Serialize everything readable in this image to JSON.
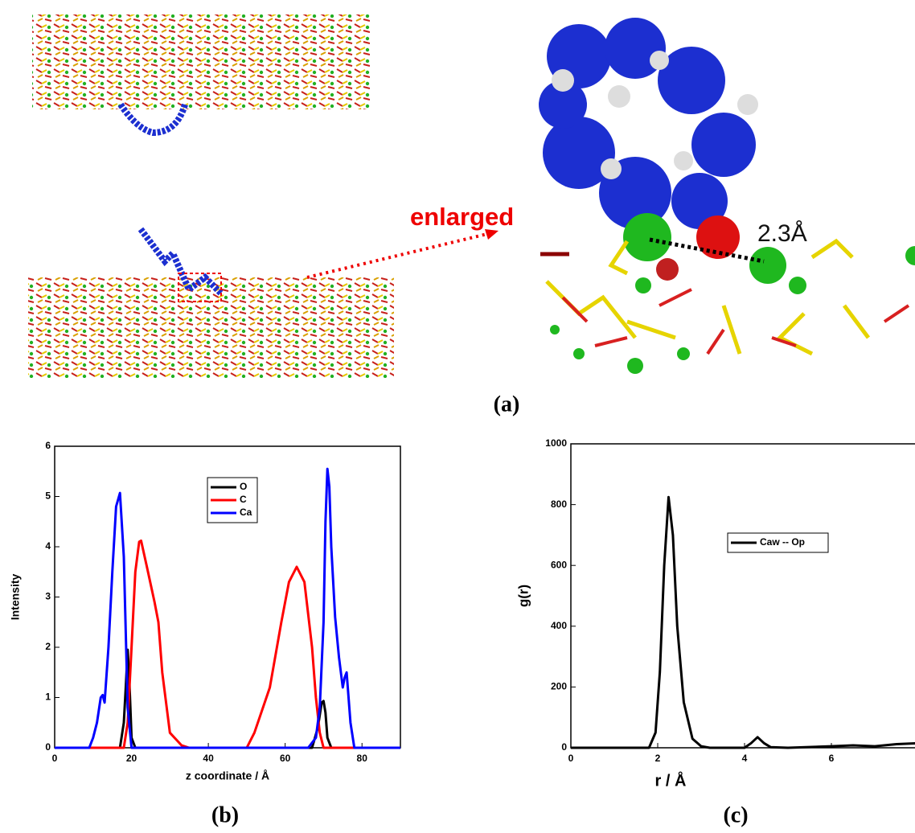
{
  "panel_a": {
    "annotation": "enlarged",
    "distance_label": "2.3Å",
    "label": "(a)"
  },
  "chart_data": [
    {
      "type": "line",
      "panel_label": "(b)",
      "x_label": "z coordinate / Å",
      "y_label": "Intensity",
      "xlim": [
        0,
        90
      ],
      "ylim": [
        0,
        6
      ],
      "xticks": [
        0,
        20,
        40,
        60,
        80
      ],
      "yticks": [
        0,
        1,
        2,
        3,
        4,
        5,
        6
      ],
      "series": [
        {
          "name": "O",
          "color": "#000000",
          "x": [
            0,
            17,
            18,
            18.5,
            19,
            19.5,
            20,
            21,
            67,
            68.5,
            69.5,
            70,
            70.5,
            71,
            72,
            90
          ],
          "values": [
            0,
            0,
            0.5,
            1.2,
            1.95,
            1.2,
            0.2,
            0,
            0,
            0.4,
            0.9,
            0.93,
            0.7,
            0.2,
            0,
            0
          ]
        },
        {
          "name": "C",
          "color": "#ff0000",
          "x": [
            0,
            18,
            19,
            20,
            21,
            22,
            22.5,
            24,
            26,
            27,
            28,
            30,
            33,
            35,
            50,
            52,
            56,
            59,
            61,
            63,
            65,
            67,
            68,
            69,
            70,
            90
          ],
          "values": [
            0,
            0,
            0.5,
            2,
            3.5,
            4.1,
            4.12,
            3.6,
            2.9,
            2.5,
            1.5,
            0.3,
            0.05,
            0,
            0,
            0.3,
            1.2,
            2.5,
            3.3,
            3.6,
            3.3,
            2,
            1,
            0.3,
            0,
            0
          ]
        },
        {
          "name": "Ca",
          "color": "#0000ff",
          "x": [
            0,
            9,
            10,
            11,
            12,
            12.5,
            13,
            14,
            15,
            16,
            17,
            18,
            19,
            20,
            66,
            68,
            69,
            70,
            70.5,
            71,
            71.5,
            72,
            73,
            74,
            75,
            75.5,
            76,
            77,
            78,
            90
          ],
          "values": [
            0,
            0,
            0.2,
            0.5,
            1,
            1.05,
            0.9,
            2,
            3.5,
            4.8,
            5.07,
            3.8,
            0.8,
            0,
            0,
            0.2,
            0.8,
            2.5,
            4.5,
            5.55,
            5.2,
            4,
            2.6,
            1.8,
            1.2,
            1.4,
            1.5,
            0.5,
            0,
            0
          ]
        }
      ]
    },
    {
      "type": "line",
      "panel_label": "(c)",
      "x_label": "r / Å",
      "y_label": "g(r)",
      "xlim": [
        0,
        8
      ],
      "ylim": [
        0,
        1000
      ],
      "xticks": [
        0,
        2,
        4,
        6
      ],
      "yticks": [
        0,
        200,
        400,
        600,
        800,
        1000
      ],
      "series": [
        {
          "name": "Caw -- Op",
          "color": "#000000",
          "x": [
            0,
            1.8,
            1.95,
            2.05,
            2.15,
            2.25,
            2.35,
            2.45,
            2.6,
            2.8,
            3,
            3.2,
            4,
            4.15,
            4.3,
            4.45,
            4.6,
            5,
            6,
            6.5,
            7,
            7.5,
            8
          ],
          "values": [
            0,
            0,
            50,
            250,
            600,
            825,
            700,
            400,
            150,
            30,
            5,
            0,
            0,
            15,
            35,
            15,
            2,
            0,
            5,
            8,
            5,
            12,
            15
          ]
        }
      ]
    }
  ]
}
